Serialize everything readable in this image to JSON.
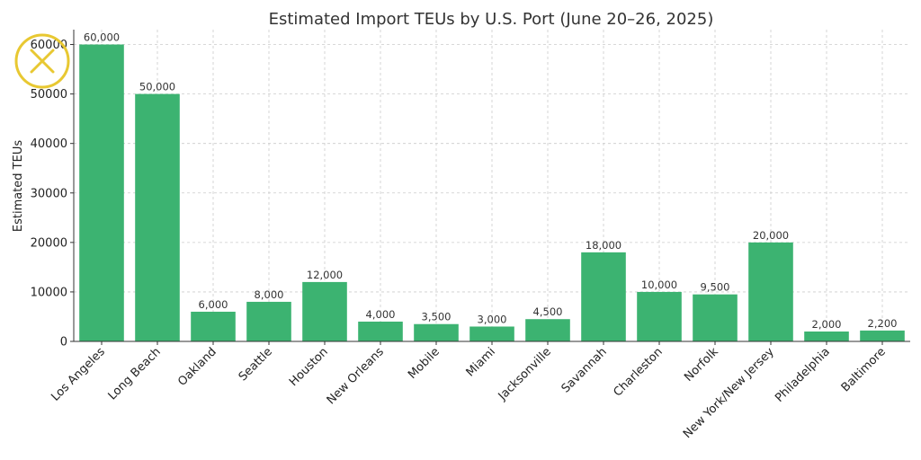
{
  "chart_data": {
    "type": "bar",
    "title": "Estimated Import TEUs by U.S. Port (June 20–26, 2025)",
    "xlabel": "",
    "ylabel": "Estimated TEUs",
    "categories": [
      "Los Angeles",
      "Long Beach",
      "Oakland",
      "Seattle",
      "Houston",
      "New Orleans",
      "Mobile",
      "Miami",
      "Jacksonville",
      "Savannah",
      "Charleston",
      "Norfolk",
      "New York/New Jersey",
      "Philadelphia",
      "Baltimore"
    ],
    "values": [
      60000,
      50000,
      6000,
      8000,
      12000,
      4000,
      3500,
      3000,
      4500,
      18000,
      10000,
      9500,
      20000,
      2000,
      2200
    ],
    "value_labels": [
      "60,000",
      "50,000",
      "6,000",
      "8,000",
      "12,000",
      "4,000",
      "3,500",
      "3,000",
      "4,500",
      "18,000",
      "10,000",
      "9,500",
      "20,000",
      "2,000",
      "2,200"
    ],
    "yticks": [
      0,
      10000,
      20000,
      30000,
      40000,
      50000,
      60000
    ],
    "ytick_labels": [
      "0",
      "10000",
      "20000",
      "30000",
      "40000",
      "50000",
      "60000"
    ],
    "ylim": [
      0,
      63000
    ],
    "grid": true,
    "bar_color": "#3cb371",
    "logo_color": "#e8c832",
    "logo_icon": "x-circle-logo"
  }
}
